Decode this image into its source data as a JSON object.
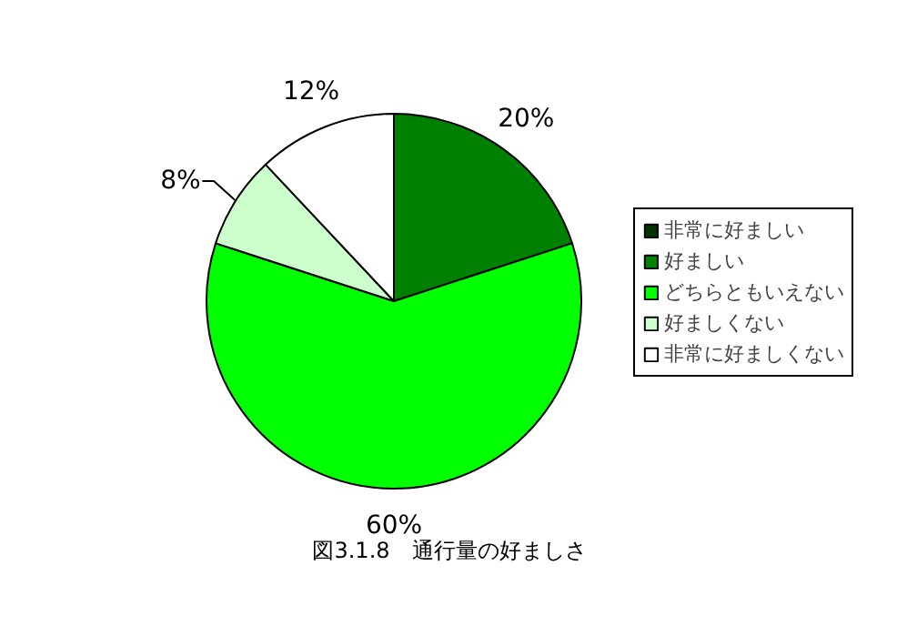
{
  "chart_data": {
    "type": "pie",
    "title": "図3.1.8　通行量の好ましさ",
    "categories": [
      "非常に好ましい",
      "好ましい",
      "どちらともいえない",
      "好ましくない",
      "非常に好ましくない"
    ],
    "values": [
      0,
      20,
      60,
      8,
      12
    ],
    "colors": [
      "#003300",
      "#008000",
      "#00ff00",
      "#ccffcc",
      "#ffffff"
    ],
    "value_labels": [
      null,
      "20%",
      "60%",
      "8%",
      "12%"
    ],
    "legend": "right"
  }
}
